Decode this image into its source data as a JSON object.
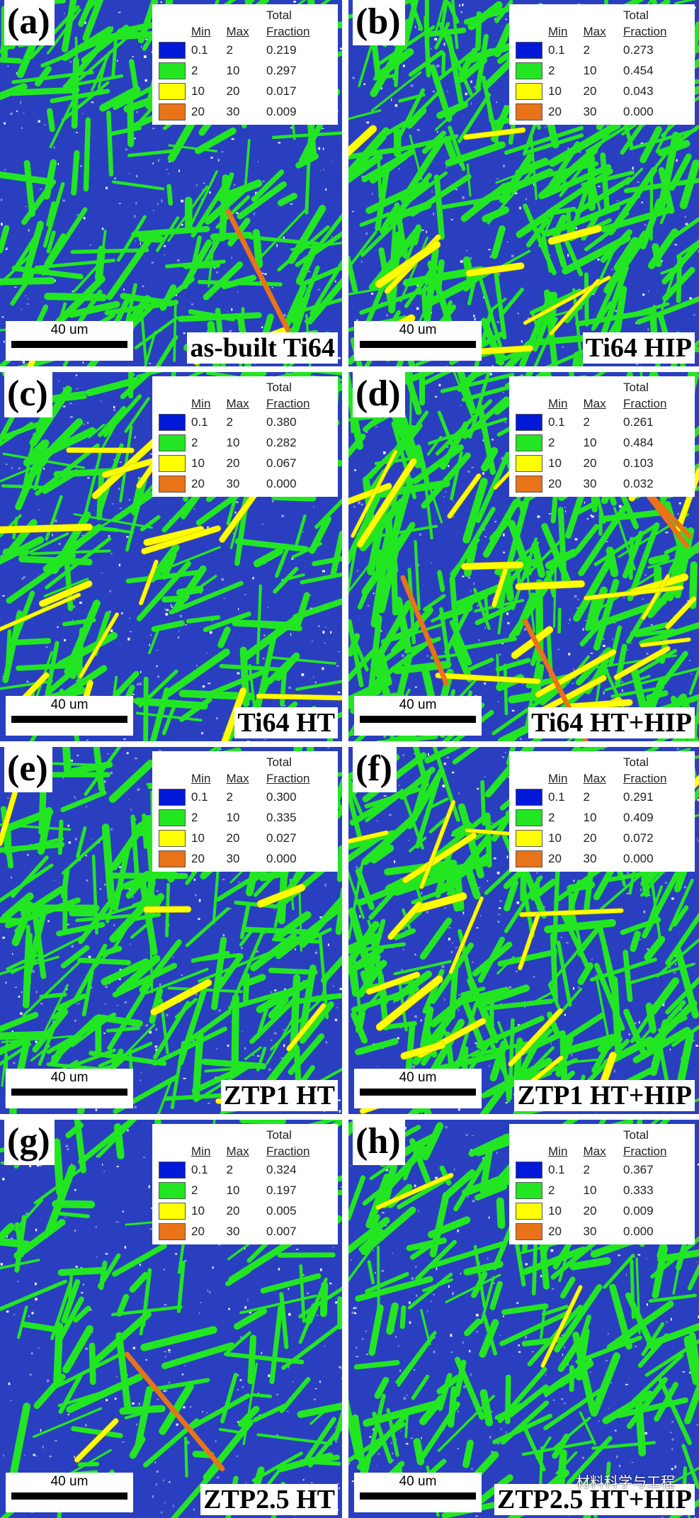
{
  "legend_header": {
    "total": "Total",
    "min": "Min",
    "max": "Max",
    "fraction": "Fraction"
  },
  "scale_bar": "40 um",
  "legend_colors": [
    "#0018d8",
    "#22e622",
    "#ffff00",
    "#e87318"
  ],
  "panels": [
    {
      "label": "(a)",
      "caption": "as-built Ti64",
      "rows": [
        {
          "min": "0.1",
          "max": "2",
          "fraction": "0.219"
        },
        {
          "min": "2",
          "max": "10",
          "fraction": "0.297"
        },
        {
          "min": "10",
          "max": "20",
          "fraction": "0.017"
        },
        {
          "min": "20",
          "max": "30",
          "fraction": "0.009"
        }
      ]
    },
    {
      "label": "(b)",
      "caption": "Ti64 HIP",
      "rows": [
        {
          "min": "0.1",
          "max": "2",
          "fraction": "0.273"
        },
        {
          "min": "2",
          "max": "10",
          "fraction": "0.454"
        },
        {
          "min": "10",
          "max": "20",
          "fraction": "0.043"
        },
        {
          "min": "20",
          "max": "30",
          "fraction": "0.000"
        }
      ]
    },
    {
      "label": "(c)",
      "caption": "Ti64 HT",
      "rows": [
        {
          "min": "0.1",
          "max": "2",
          "fraction": "0.380"
        },
        {
          "min": "2",
          "max": "10",
          "fraction": "0.282"
        },
        {
          "min": "10",
          "max": "20",
          "fraction": "0.067"
        },
        {
          "min": "20",
          "max": "30",
          "fraction": "0.000"
        }
      ]
    },
    {
      "label": "(d)",
      "caption": "Ti64 HT+HIP",
      "rows": [
        {
          "min": "0.1",
          "max": "2",
          "fraction": "0.261"
        },
        {
          "min": "2",
          "max": "10",
          "fraction": "0.484"
        },
        {
          "min": "10",
          "max": "20",
          "fraction": "0.103"
        },
        {
          "min": "20",
          "max": "30",
          "fraction": "0.032"
        }
      ]
    },
    {
      "label": "(e)",
      "caption": "ZTP1 HT",
      "rows": [
        {
          "min": "0.1",
          "max": "2",
          "fraction": "0.300"
        },
        {
          "min": "2",
          "max": "10",
          "fraction": "0.335"
        },
        {
          "min": "10",
          "max": "20",
          "fraction": "0.027"
        },
        {
          "min": "20",
          "max": "30",
          "fraction": "0.000"
        }
      ]
    },
    {
      "label": "(f)",
      "caption": "ZTP1 HT+HIP",
      "rows": [
        {
          "min": "0.1",
          "max": "2",
          "fraction": "0.291"
        },
        {
          "min": "2",
          "max": "10",
          "fraction": "0.409"
        },
        {
          "min": "10",
          "max": "20",
          "fraction": "0.072"
        },
        {
          "min": "20",
          "max": "30",
          "fraction": "0.000"
        }
      ]
    },
    {
      "label": "(g)",
      "caption": "ZTP2.5 HT",
      "rows": [
        {
          "min": "0.1",
          "max": "2",
          "fraction": "0.324"
        },
        {
          "min": "2",
          "max": "10",
          "fraction": "0.197"
        },
        {
          "min": "10",
          "max": "20",
          "fraction": "0.005"
        },
        {
          "min": "20",
          "max": "30",
          "fraction": "0.007"
        }
      ]
    },
    {
      "label": "(h)",
      "caption": "ZTP2.5 HT+HIP",
      "rows": [
        {
          "min": "0.1",
          "max": "2",
          "fraction": "0.367"
        },
        {
          "min": "2",
          "max": "10",
          "fraction": "0.333"
        },
        {
          "min": "10",
          "max": "20",
          "fraction": "0.009"
        },
        {
          "min": "20",
          "max": "30",
          "fraction": "0.000"
        }
      ]
    }
  ],
  "watermark": "材料科学与工程"
}
